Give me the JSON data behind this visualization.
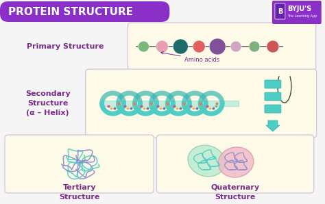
{
  "bg_color": "#f5f5f5",
  "title": "PROTEIN STRUCTURE",
  "title_bg": "#8b2fc9",
  "title_color": "#ffffff",
  "title_fontsize": 11,
  "panel_bg": "#fdfbe8",
  "panel_border": "#d4c8e0",
  "purple": "#7b2d8b",
  "teal": "#4ecdc4",
  "bead_colors": [
    "#7ab87a",
    "#e8a0b0",
    "#1e6b6b",
    "#e06060",
    "#805098",
    "#d0a8c0",
    "#80b080",
    "#cc5555"
  ],
  "primary_label": "Primary Structure",
  "secondary_label": "Secondary\nStructure\n(α – Helix)",
  "tertiary_label": "Tertiary\nStructure",
  "quaternary_label": "Quaternary\nStructure",
  "amino_acids_label": "Amino acids",
  "byju_text": "BYJU'S",
  "byju_sub": "The Learning App"
}
